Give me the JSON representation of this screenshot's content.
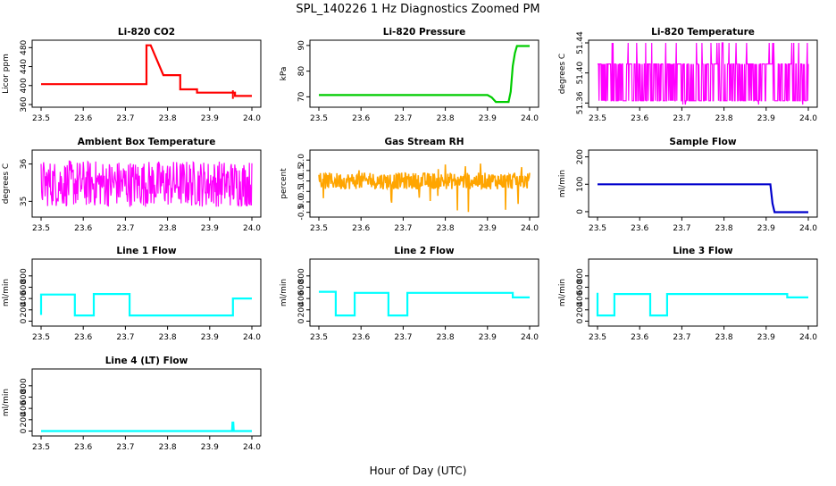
{
  "page_title": "SPL_140226  1 Hz Diagnostics Zoomed PM",
  "x_label": "Hour of Day (UTC)",
  "chart_data": [
    {
      "type": "line",
      "title": "Li-820 CO2",
      "ylabel": "Licor ppm",
      "color": "#ff0000",
      "xlim": [
        23.5,
        24.0
      ],
      "ylim": [
        360,
        490
      ],
      "yticks": [
        360,
        400,
        440,
        480
      ],
      "xticks": [
        23.5,
        23.6,
        23.7,
        23.8,
        23.9,
        24.0
      ],
      "x": [
        23.5,
        23.75,
        23.75,
        23.76,
        23.76,
        23.79,
        23.79,
        23.83,
        23.83,
        23.87,
        23.87,
        23.96,
        23.96,
        23.97,
        23.97,
        24.0
      ],
      "y": [
        403,
        403,
        485,
        485,
        485,
        422,
        422,
        422,
        392,
        392,
        385,
        385,
        378,
        378,
        378,
        378
      ]
    },
    {
      "type": "line",
      "title": "Li-820 Pressure",
      "ylabel": "kPa",
      "color": "#00cc00",
      "xlim": [
        23.5,
        24.0
      ],
      "ylim": [
        67,
        91
      ],
      "yticks": [
        70,
        80,
        90
      ],
      "xticks": [
        23.5,
        23.6,
        23.7,
        23.8,
        23.9,
        24.0
      ],
      "x": [
        23.5,
        23.9,
        23.91,
        23.92,
        23.95,
        23.955,
        23.96,
        23.965,
        23.97,
        24.0
      ],
      "y": [
        70.7,
        70.7,
        69.8,
        68.0,
        68.0,
        72,
        82,
        87,
        89.8,
        89.8
      ]
    },
    {
      "type": "line",
      "title": "Li-820 Temperature",
      "ylabel": "degrees C",
      "color": "#ff00ff",
      "xlim": [
        23.5,
        24.0
      ],
      "ylim": [
        51.358,
        51.44
      ],
      "yticks": [
        51.36,
        51.4,
        51.44
      ],
      "xticks": [
        23.5,
        23.6,
        23.7,
        23.8,
        23.9,
        24.0
      ],
      "noise_band": [
        51.363,
        51.412
      ],
      "spikes_high": 51.44,
      "spikes_low": 51.358
    },
    {
      "type": "line",
      "title": "Ambient Box Temperature",
      "ylabel": "degrees C",
      "color": "#ff00ff",
      "xlim": [
        23.5,
        24.0
      ],
      "ylim": [
        34.65,
        36.3
      ],
      "yticks": [
        35.0,
        36.0
      ],
      "xticks": [
        23.5,
        23.6,
        23.7,
        23.8,
        23.9,
        24.0
      ],
      "noise_band": [
        34.85,
        36.1
      ]
    },
    {
      "type": "line",
      "title": "Gas Stream RH",
      "ylabel": "percent",
      "color": "#ffa500",
      "xlim": [
        23.5,
        24.0
      ],
      "ylim": [
        -0.6,
        2.35
      ],
      "yticks": [
        -0.5,
        0.0,
        0.5,
        1.0,
        1.5,
        2.0
      ],
      "xticks": [
        23.5,
        23.6,
        23.7,
        23.8,
        23.9,
        24.0
      ],
      "noise_band": [
        0.6,
        1.4
      ]
    },
    {
      "type": "line",
      "title": "Sample Flow",
      "ylabel": "ml/min",
      "color": "#0000cc",
      "xlim": [
        23.5,
        24.0
      ],
      "ylim": [
        -10,
        215
      ],
      "yticks": [
        0,
        100,
        200
      ],
      "xticks": [
        23.5,
        23.6,
        23.7,
        23.8,
        23.9,
        24.0
      ],
      "x": [
        23.5,
        23.91,
        23.915,
        23.92,
        24.0
      ],
      "y": [
        100,
        100,
        30,
        -2,
        -2
      ]
    },
    {
      "type": "line",
      "title": "Line 1 Flow",
      "ylabel": "ml/min",
      "color": "#00ffff",
      "xlim": [
        23.5,
        24.0
      ],
      "ylim": [
        -40,
        1050
      ],
      "yticks": [
        0,
        200,
        400,
        600,
        800
      ],
      "xticks": [
        23.5,
        23.6,
        23.7,
        23.8,
        23.9,
        24.0
      ],
      "x": [
        23.5,
        23.5,
        23.58,
        23.58,
        23.625,
        23.625,
        23.71,
        23.71,
        23.955,
        23.955,
        24.0
      ],
      "y": [
        110,
        470,
        470,
        100,
        100,
        480,
        480,
        100,
        100,
        400,
        400
      ]
    },
    {
      "type": "line",
      "title": "Line 2 Flow",
      "ylabel": "ml/min",
      "color": "#00ffff",
      "xlim": [
        23.5,
        24.0
      ],
      "ylim": [
        -40,
        1050
      ],
      "yticks": [
        0,
        200,
        400,
        600,
        800
      ],
      "xticks": [
        23.5,
        23.6,
        23.7,
        23.8,
        23.9,
        24.0
      ],
      "x": [
        23.5,
        23.54,
        23.54,
        23.585,
        23.585,
        23.665,
        23.665,
        23.71,
        23.71,
        23.96,
        23.96,
        24.0
      ],
      "y": [
        520,
        520,
        100,
        100,
        500,
        500,
        100,
        100,
        500,
        500,
        420,
        420
      ]
    },
    {
      "type": "line",
      "title": "Line 3 Flow",
      "ylabel": "ml/min",
      "color": "#00ffff",
      "xlim": [
        23.5,
        24.0
      ],
      "ylim": [
        -40,
        1050
      ],
      "yticks": [
        0,
        200,
        400,
        600,
        800
      ],
      "xticks": [
        23.5,
        23.6,
        23.7,
        23.8,
        23.9,
        24.0
      ],
      "x": [
        23.5,
        23.5,
        23.54,
        23.54,
        23.625,
        23.625,
        23.665,
        23.665,
        23.95,
        23.95,
        24.0
      ],
      "y": [
        500,
        100,
        100,
        480,
        480,
        100,
        100,
        480,
        480,
        420,
        420
      ]
    },
    {
      "type": "line",
      "title": "Line 4 (LT) Flow",
      "ylabel": "ml/min",
      "color": "#00ffff",
      "xlim": [
        23.5,
        24.0
      ],
      "ylim": [
        -40,
        1050
      ],
      "yticks": [
        0,
        200,
        400,
        600,
        800
      ],
      "xticks": [
        23.5,
        23.6,
        23.7,
        23.8,
        23.9,
        24.0
      ],
      "x": [
        23.5,
        23.953,
        23.954,
        23.956,
        23.957,
        24.0
      ],
      "y": [
        0,
        0,
        150,
        150,
        0,
        0
      ]
    }
  ]
}
